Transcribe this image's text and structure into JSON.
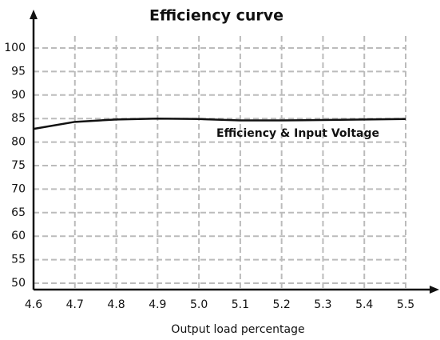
{
  "chart_data": {
    "type": "line",
    "title": "Efficiency curve",
    "x_label": "Output load percentage",
    "annotation": "Efficiency & Input Voltage",
    "x": [
      4.6,
      4.7,
      4.8,
      4.9,
      5.0,
      5.1,
      5.2,
      5.3,
      5.4,
      5.5
    ],
    "series": [
      {
        "name": "Efficiency & Input Voltage",
        "color": "#111111",
        "values": [
          82.8,
          84.3,
          84.8,
          85.0,
          84.9,
          84.6,
          84.6,
          84.7,
          84.8,
          84.9
        ]
      }
    ],
    "xlim": [
      4.6,
      5.5
    ],
    "xticks": [
      {
        "value": 4.6,
        "label": "4.6"
      },
      {
        "value": 4.7,
        "label": "4.7"
      },
      {
        "value": 4.8,
        "label": "4.8"
      },
      {
        "value": 4.9,
        "label": "4.9"
      },
      {
        "value": 5.0,
        "label": "5.0"
      },
      {
        "value": 5.1,
        "label": "5.1"
      },
      {
        "value": 5.2,
        "label": "5.2"
      },
      {
        "value": 5.3,
        "label": "5.3"
      },
      {
        "value": 5.4,
        "label": "5.4"
      },
      {
        "value": 5.5,
        "label": "5.5"
      }
    ],
    "ylim": [
      50,
      100
    ],
    "yticks": [
      50,
      55,
      60,
      65,
      70,
      75,
      80,
      85,
      90,
      95,
      100
    ],
    "grid": true
  }
}
